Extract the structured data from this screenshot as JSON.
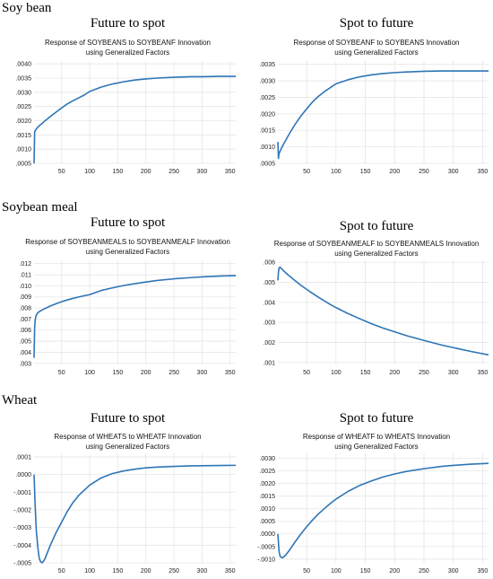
{
  "sections": [
    {
      "title": "Soy bean"
    },
    {
      "title": "Soybean meal"
    },
    {
      "title": "Wheat"
    }
  ],
  "chart_data": [
    {
      "type": "line",
      "title": "Future to spot",
      "subtitle_1": "Response of SOYBEANS to SOYBEANF Innovation",
      "subtitle_2": "using Generalized Factors",
      "x_ticks": [
        "50",
        "100",
        "150",
        "200",
        "250",
        "300",
        "350"
      ],
      "y_ticks": [
        ".0005",
        ".0010",
        ".0015",
        ".0020",
        ".0025",
        ".0030",
        ".0035",
        ".0040"
      ],
      "xlim": [
        1,
        360
      ],
      "ylim": [
        0.0005,
        0.0041
      ],
      "color": "#2e75b6",
      "x": [
        1,
        2,
        3,
        4,
        5,
        6,
        8,
        10,
        15,
        20,
        30,
        40,
        50,
        60,
        70,
        80,
        90,
        100,
        120,
        140,
        160,
        180,
        200,
        220,
        250,
        280,
        300,
        330,
        360
      ],
      "y": [
        0.0005,
        0.0016,
        0.00165,
        0.00168,
        0.00171,
        0.00173,
        0.00178,
        0.00182,
        0.0019,
        0.00199,
        0.00215,
        0.0023,
        0.00245,
        0.00259,
        0.0027,
        0.0028,
        0.0029,
        0.00303,
        0.00318,
        0.00329,
        0.00337,
        0.00343,
        0.00347,
        0.0035,
        0.00353,
        0.00355,
        0.00355,
        0.00356,
        0.00356
      ]
    },
    {
      "type": "line",
      "title": "Spot to future",
      "subtitle_1": "Response of SOYBEANF to SOYBEANS Innovation",
      "subtitle_2": "using Generalized Factors",
      "x_ticks": [
        "50",
        "100",
        "150",
        "200",
        "250",
        "300",
        "350"
      ],
      "y_ticks": [
        ".0005",
        ".0010",
        ".0015",
        ".0020",
        ".0025",
        ".0030",
        ".0035"
      ],
      "xlim": [
        1,
        360
      ],
      "ylim": [
        0.0005,
        0.0036
      ],
      "color": "#2e75b6",
      "x": [
        1,
        2,
        3,
        4,
        5,
        6,
        8,
        10,
        15,
        20,
        30,
        40,
        50,
        60,
        70,
        80,
        90,
        100,
        120,
        140,
        160,
        180,
        200,
        220,
        250,
        280,
        300,
        330,
        360
      ],
      "y": [
        0.00115,
        0.00065,
        0.0008,
        0.00084,
        0.00088,
        0.00092,
        0.00099,
        0.00106,
        0.00122,
        0.00138,
        0.00167,
        0.00193,
        0.00215,
        0.00236,
        0.00253,
        0.00267,
        0.00279,
        0.00291,
        0.00303,
        0.00312,
        0.00318,
        0.00322,
        0.00325,
        0.00327,
        0.00329,
        0.0033,
        0.0033,
        0.0033,
        0.0033
      ]
    },
    {
      "type": "line",
      "title": "Future to spot",
      "subtitle_1": "Response of SOYBEANMEALS to SOYBEANMEALF Innovation",
      "subtitle_2": "using Generalized Factors",
      "x_ticks": [
        "50",
        "100",
        "150",
        "200",
        "250",
        "300",
        "350"
      ],
      "y_ticks": [
        ".003",
        ".004",
        ".005",
        ".006",
        ".007",
        ".008",
        ".009",
        ".010",
        ".011",
        ".012"
      ],
      "xlim": [
        1,
        360
      ],
      "ylim": [
        0.0029,
        0.0123
      ],
      "color": "#2e75b6",
      "x": [
        1,
        2,
        3,
        4,
        5,
        6,
        8,
        10,
        15,
        20,
        30,
        40,
        50,
        60,
        70,
        80,
        90,
        100,
        120,
        140,
        160,
        180,
        200,
        220,
        250,
        280,
        300,
        330,
        360
      ],
      "y": [
        0.0035,
        0.0062,
        0.0069,
        0.0072,
        0.00735,
        0.00745,
        0.00758,
        0.00766,
        0.00781,
        0.00794,
        0.00818,
        0.00838,
        0.00856,
        0.00872,
        0.00886,
        0.00899,
        0.0091,
        0.0092,
        0.00957,
        0.00981,
        0.01002,
        0.01019,
        0.01034,
        0.01048,
        0.01063,
        0.01074,
        0.01081,
        0.01088,
        0.01092
      ]
    },
    {
      "type": "line",
      "title": "Spot to future",
      "subtitle_1": "Response of SOYBEANMEALF to SOYBEANMEALS Innovation",
      "subtitle_2": "using Generalized Factors",
      "x_ticks": [
        "50",
        "100",
        "150",
        "200",
        "250",
        "300",
        "350"
      ],
      "y_ticks": [
        ".001",
        ".002",
        ".003",
        ".004",
        ".005",
        ".006"
      ],
      "xlim": [
        1,
        360
      ],
      "ylim": [
        0.0009,
        0.0061
      ],
      "color": "#2e75b6",
      "x": [
        1,
        2,
        3,
        4,
        5,
        6,
        8,
        10,
        15,
        20,
        30,
        40,
        50,
        60,
        70,
        80,
        90,
        100,
        120,
        140,
        160,
        180,
        200,
        220,
        250,
        280,
        300,
        330,
        360
      ],
      "y": [
        0.0051,
        0.0055,
        0.0057,
        0.00575,
        0.00575,
        0.00572,
        0.00566,
        0.0056,
        0.00546,
        0.00533,
        0.00509,
        0.00486,
        0.00465,
        0.00445,
        0.00426,
        0.00408,
        0.0039,
        0.00374,
        0.00345,
        0.00319,
        0.00294,
        0.00272,
        0.00253,
        0.00234,
        0.0021,
        0.00187,
        0.00174,
        0.00155,
        0.00138
      ]
    },
    {
      "type": "line",
      "title": "Future to spot",
      "subtitle_1": "Response of WHEATS to WHEATF Innovation",
      "subtitle_2": "using Generalized Factors",
      "x_ticks": [
        "50",
        "100",
        "150",
        "200",
        "250",
        "300",
        "350"
      ],
      "y_ticks": [
        "-.0005",
        "-.0004",
        "-.0003",
        "-.0002",
        "-.0001",
        ".0000",
        ".0001"
      ],
      "xlim": [
        1,
        360
      ],
      "ylim": [
        -0.0005,
        0.00012
      ],
      "color": "#2e75b6",
      "x": [
        1,
        3,
        5,
        8,
        10,
        12,
        15,
        18,
        20,
        25,
        30,
        40,
        50,
        60,
        70,
        80,
        90,
        100,
        120,
        140,
        160,
        180,
        200,
        220,
        250,
        280,
        300,
        330,
        360
      ],
      "y": [
        0.0,
        -0.00018,
        -0.00032,
        -0.00042,
        -0.00047,
        -0.00049,
        -0.0005,
        -0.00049,
        -0.00048,
        -0.00044,
        -0.0004,
        -0.00033,
        -0.00027,
        -0.00021,
        -0.00016,
        -0.00012,
        -9e-05,
        -6e-05,
        -2e-05,
        5e-06,
        2e-05,
        3e-05,
        3.8e-05,
        4.2e-05,
        4.6e-05,
        4.9e-05,
        5e-05,
        5.1e-05,
        5.2e-05
      ]
    },
    {
      "type": "line",
      "title": "Spot to future",
      "subtitle_1": "Response of WHEATF to WHEATS Innovation",
      "subtitle_2": "using Generalized Factors",
      "x_ticks": [
        "50",
        "100",
        "150",
        "200",
        "250",
        "300",
        "350"
      ],
      "y_ticks": [
        "-.0010",
        "-.0005",
        ".0000",
        ".0005",
        ".0010",
        ".0015",
        ".0020",
        ".0025",
        ".0030"
      ],
      "xlim": [
        1,
        360
      ],
      "ylim": [
        -0.00115,
        0.0032
      ],
      "color": "#2e75b6",
      "x": [
        1,
        3,
        5,
        8,
        10,
        12,
        15,
        18,
        20,
        25,
        30,
        40,
        50,
        60,
        70,
        80,
        90,
        100,
        120,
        140,
        160,
        180,
        200,
        220,
        250,
        280,
        300,
        330,
        360
      ],
      "y": [
        0.0,
        -0.0007,
        -0.0009,
        -0.00095,
        -0.00093,
        -0.00089,
        -0.00082,
        -0.00073,
        -0.00067,
        -0.0005,
        -0.00033,
        -1e-05,
        0.00028,
        0.00055,
        0.00079,
        0.001,
        0.0012,
        0.00138,
        0.00168,
        0.00192,
        0.0021,
        0.00226,
        0.00238,
        0.00248,
        0.00259,
        0.00268,
        0.00272,
        0.00277,
        0.0028
      ]
    }
  ]
}
